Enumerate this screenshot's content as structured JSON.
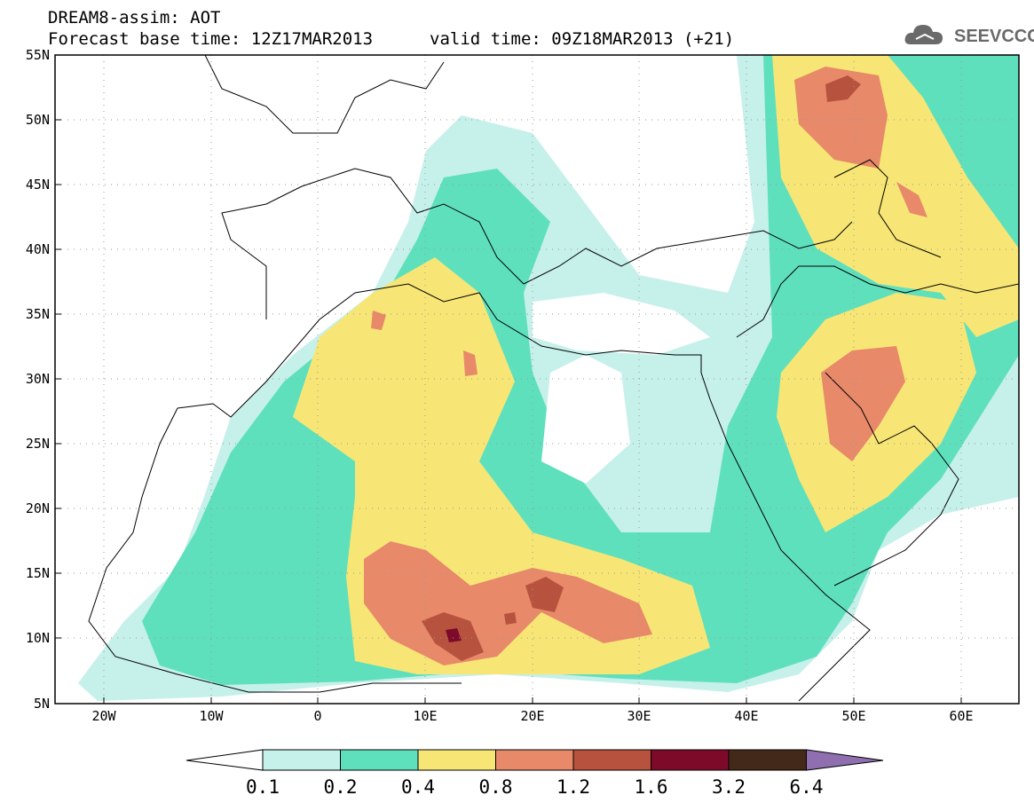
{
  "header": {
    "line1": "DREAM8-assim: AOT",
    "line2_left": "Forecast base time: 12Z17MAR2013",
    "line2_right": "valid time: 09Z18MAR2013 (+21)"
  },
  "logo": {
    "text": "SEEVCCC",
    "icon": "cloud-icon"
  },
  "map": {
    "lon_ticks": [
      "20W",
      "10W",
      "0",
      "10E",
      "20E",
      "30E",
      "40E",
      "50E",
      "60E"
    ],
    "lat_ticks": [
      "55N",
      "50N",
      "45N",
      "40N",
      "35N",
      "30N",
      "25N",
      "20N",
      "15N",
      "10N",
      "5N"
    ],
    "lon_range": [
      -25,
      65
    ],
    "lat_range": [
      5,
      55
    ],
    "grid": "dotted"
  },
  "legend": {
    "labels": [
      "0.1",
      "0.2",
      "0.4",
      "0.8",
      "1.2",
      "1.6",
      "3.2",
      "6.4"
    ],
    "colors": [
      "#ffffff",
      "#c6f0ea",
      "#5fe0bd",
      "#f7e675",
      "#e8896a",
      "#b7523e",
      "#7e0a2a",
      "#43291a",
      "#8f6fb0"
    ]
  }
}
